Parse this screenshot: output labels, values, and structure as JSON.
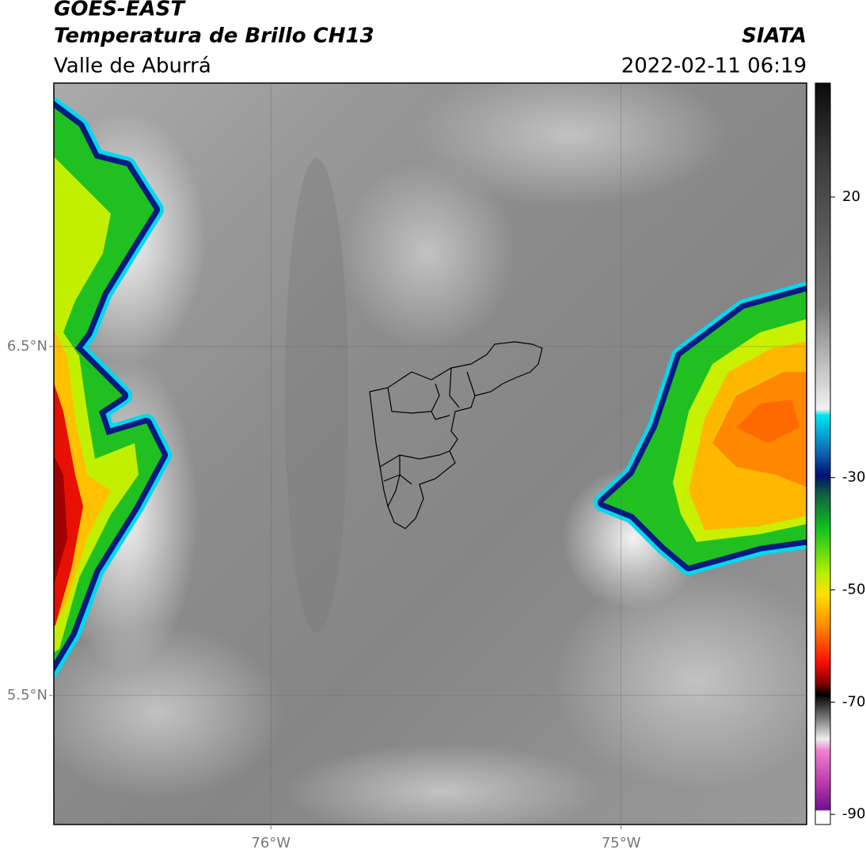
{
  "header": {
    "title": "GOES-EAST",
    "subtitle": "Temperatura de Brillo CH13",
    "region": "Valle de Aburrá",
    "source": "SIATA",
    "datetime": "2022-02-11 06:19"
  },
  "map": {
    "xlim": [
      -76.62,
      -74.47
    ],
    "ylim": [
      5.13,
      7.255
    ],
    "xticks": [
      {
        "value": -76,
        "label": "76°W"
      },
      {
        "value": -75,
        "label": "75°W"
      }
    ],
    "yticks": [
      {
        "value": 6.5,
        "label": "6.5°N"
      },
      {
        "value": 5.5,
        "label": "5.5°N"
      }
    ],
    "grid": true
  },
  "colorbar": {
    "lim": [
      -91.8,
      40.3
    ],
    "ticks": [
      20,
      -30,
      -50,
      -70,
      -90
    ]
  }
}
